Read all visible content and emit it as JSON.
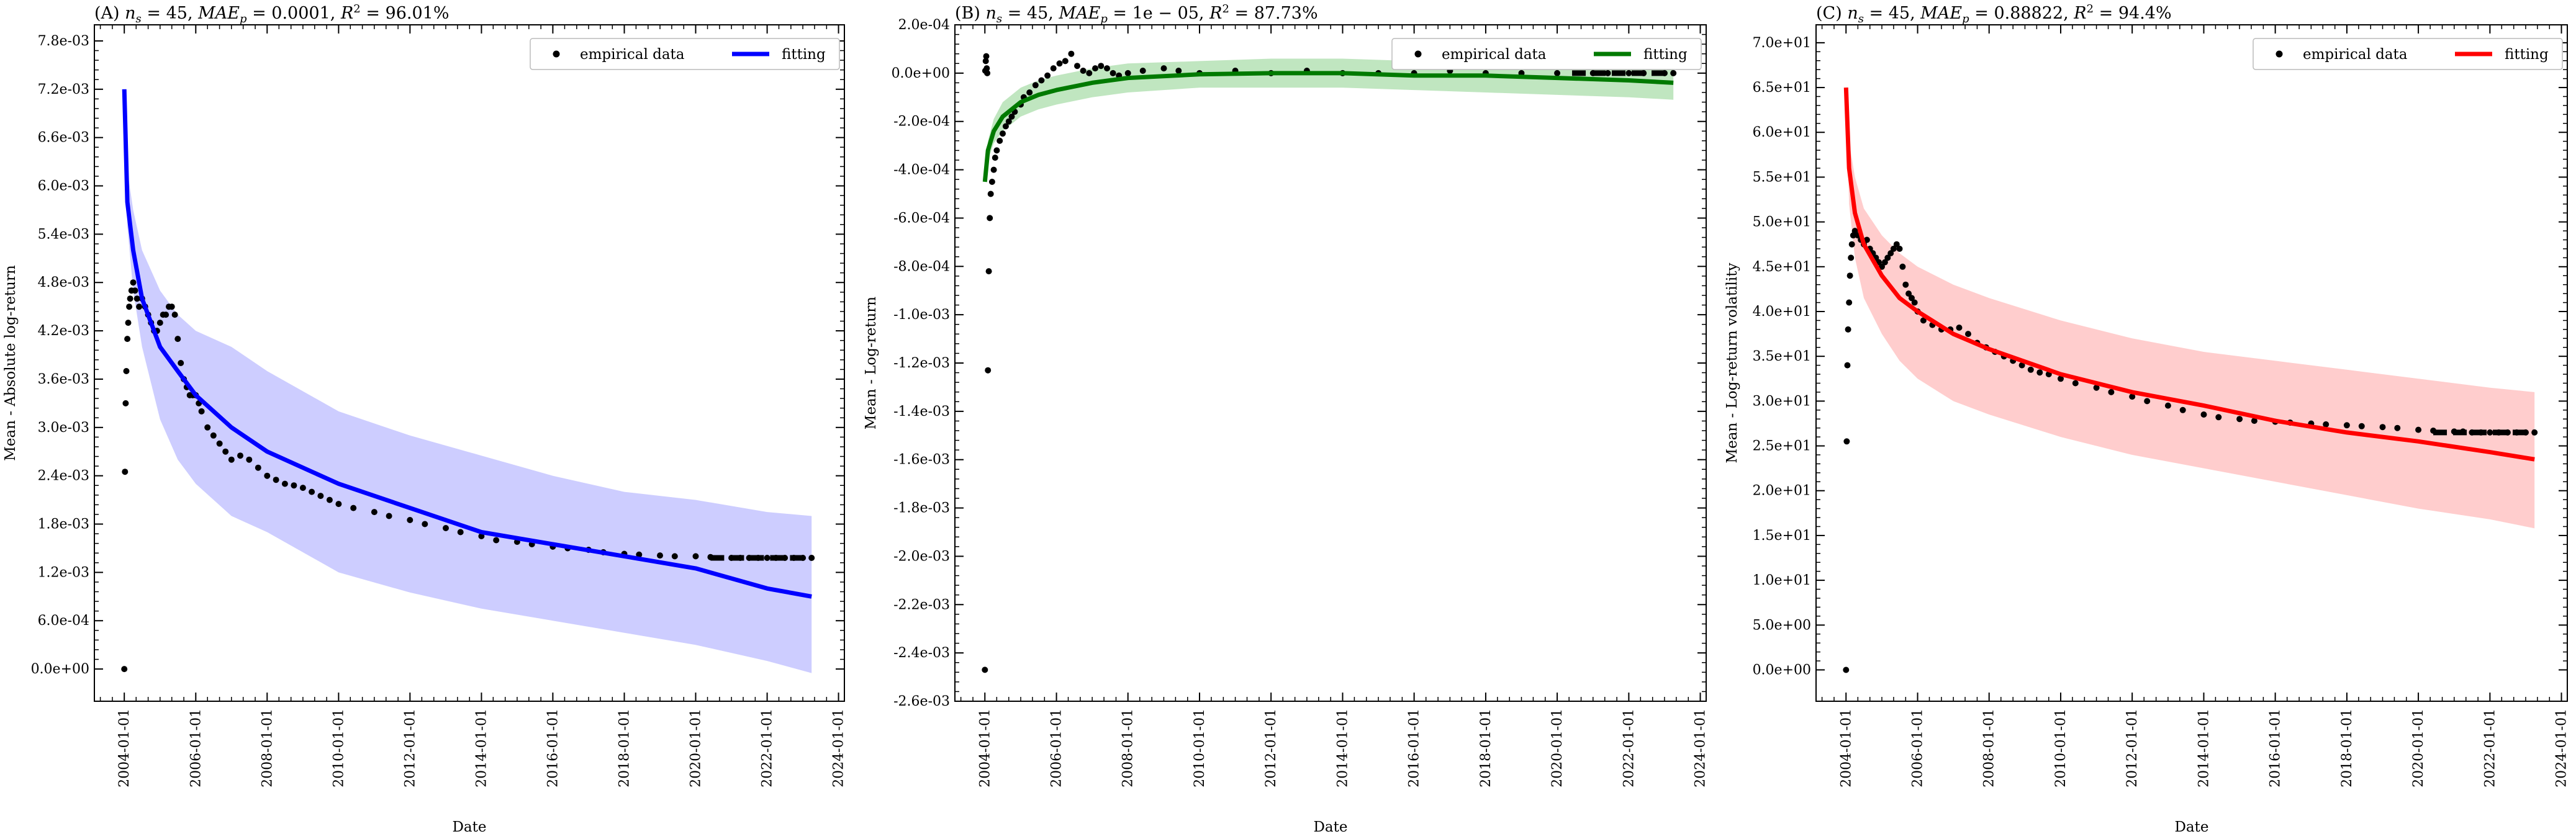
{
  "figure": {
    "xlabel": "Date",
    "legend": {
      "empirical_label": "empirical data",
      "fitting_label": "fitting",
      "placement": "top-right"
    }
  },
  "chart_data": [
    {
      "type": "scatter",
      "panel": "A",
      "title": "(A) n_s = 45, MAE_p = 0.0001, R^2 = 96.01%",
      "title_parts": {
        "prefix": "(A) ",
        "ns": "45",
        "mae": "0.0001",
        "r2": "96.01%"
      },
      "xlabel": "Date",
      "ylabel": "Mean - Absolute log-return",
      "x_ticks": [
        "2004-01-01",
        "2006-01-01",
        "2008-01-01",
        "2010-01-01",
        "2012-01-01",
        "2014-01-01",
        "2016-01-01",
        "2018-01-01",
        "2020-01-01",
        "2022-01-01",
        "2024-01-01"
      ],
      "y_ticks": [
        "0.0e+00",
        "6.0e-04",
        "1.2e-03",
        "1.8e-03",
        "2.4e-03",
        "3.0e-03",
        "3.6e-03",
        "4.2e-03",
        "4.8e-03",
        "5.4e-03",
        "6.0e-03",
        "6.6e-03",
        "7.2e-03",
        "7.8e-03"
      ],
      "ylim": [
        -0.0004,
        0.008
      ],
      "xlim": [
        "2003-03-01",
        "2024-03-01"
      ],
      "grid": false,
      "fit_color": "#0000ff",
      "band_color": "#c8c8ff",
      "empirical": {
        "name": "empirical data",
        "x": [
          "2004-01-01",
          "2004-01-08",
          "2004-01-15",
          "2004-01-22",
          "2004-02-01",
          "2004-02-10",
          "2004-02-20",
          "2004-03-01",
          "2004-03-15",
          "2004-04-01",
          "2004-04-20",
          "2004-05-10",
          "2004-06-01",
          "2004-07-01",
          "2004-08-01",
          "2004-09-01",
          "2004-10-01",
          "2004-11-01",
          "2004-12-01",
          "2005-01-01",
          "2005-02-01",
          "2005-03-01",
          "2005-04-01",
          "2005-05-01",
          "2005-06-01",
          "2005-07-01",
          "2005-08-01",
          "2005-09-01",
          "2005-10-01",
          "2005-11-01",
          "2005-12-01",
          "2006-01-01",
          "2006-02-01",
          "2006-03-01",
          "2006-05-01",
          "2006-07-01",
          "2006-09-01",
          "2006-11-01",
          "2007-01-01",
          "2007-04-01",
          "2007-07-01",
          "2007-10-01",
          "2008-01-01",
          "2008-04-01",
          "2008-07-01",
          "2008-10-01",
          "2009-01-01",
          "2009-04-01",
          "2009-07-01",
          "2009-10-01",
          "2010-01-01",
          "2010-06-01",
          "2011-01-01",
          "2011-06-01",
          "2012-01-01",
          "2012-06-01",
          "2013-01-01",
          "2013-06-01",
          "2014-01-01",
          "2014-06-01",
          "2015-01-01",
          "2015-06-01",
          "2016-01-01",
          "2016-06-01",
          "2017-01-01",
          "2017-06-01",
          "2018-01-01",
          "2018-06-01",
          "2019-01-01",
          "2019-06-01",
          "2020-01-01",
          "2020-06-01",
          "2021-01-01",
          "2021-04-01",
          "2021-07-01",
          "2021-10-01",
          "2022-01-01",
          "2022-04-01",
          "2022-07-01",
          "2022-10-01",
          "2023-01-01",
          "2023-04-01"
        ],
        "y": [
          0.0,
          0.00245,
          0.0033,
          0.0037,
          0.0041,
          0.0043,
          0.0045,
          0.0046,
          0.0047,
          0.0048,
          0.0047,
          0.0046,
          0.0045,
          0.0046,
          0.0045,
          0.0044,
          0.0043,
          0.0042,
          0.0042,
          0.0043,
          0.0044,
          0.0044,
          0.0045,
          0.0045,
          0.0044,
          0.0041,
          0.0038,
          0.0036,
          0.0035,
          0.0034,
          0.0034,
          0.0034,
          0.0033,
          0.0032,
          0.003,
          0.0029,
          0.0028,
          0.0027,
          0.0026,
          0.00265,
          0.0026,
          0.0025,
          0.0024,
          0.00235,
          0.0023,
          0.00228,
          0.00225,
          0.0022,
          0.00215,
          0.0021,
          0.00205,
          0.002,
          0.00195,
          0.0019,
          0.00185,
          0.0018,
          0.00175,
          0.0017,
          0.00165,
          0.0016,
          0.00158,
          0.00155,
          0.00152,
          0.0015,
          0.00148,
          0.00145,
          0.00143,
          0.00142,
          0.00141,
          0.0014,
          0.0014,
          0.00139,
          0.00138,
          0.00138,
          0.00138,
          0.00138,
          0.00138,
          0.00138,
          0.00138,
          0.00138,
          0.00138,
          0.00138
        ]
      },
      "fit": {
        "name": "fitting",
        "x": [
          "2004-01-01",
          "2004-02-01",
          "2004-04-01",
          "2004-07-01",
          "2005-01-01",
          "2005-07-01",
          "2006-01-01",
          "2007-01-01",
          "2008-01-01",
          "2010-01-01",
          "2012-01-01",
          "2014-01-01",
          "2016-01-01",
          "2018-01-01",
          "2020-01-01",
          "2022-01-01",
          "2023-04-01"
        ],
        "y": [
          0.0072,
          0.0058,
          0.0052,
          0.0046,
          0.004,
          0.0037,
          0.0034,
          0.003,
          0.0027,
          0.0023,
          0.002,
          0.0017,
          0.00155,
          0.0014,
          0.00125,
          0.001,
          0.0009
        ],
        "band_lower": [
          0.0072,
          0.0055,
          0.0047,
          0.004,
          0.0031,
          0.0026,
          0.0023,
          0.0019,
          0.0017,
          0.0012,
          0.00095,
          0.00075,
          0.0006,
          0.00045,
          0.0003,
          0.0001,
          -5e-05
        ],
        "band_upper": [
          0.0072,
          0.0062,
          0.0057,
          0.0052,
          0.0047,
          0.0044,
          0.0042,
          0.004,
          0.0037,
          0.0032,
          0.0029,
          0.00265,
          0.0024,
          0.0022,
          0.0021,
          0.00195,
          0.0019
        ]
      }
    },
    {
      "type": "scatter",
      "panel": "B",
      "title": "(B) n_s = 45, MAE_p = 1e-05, R^2 = 87.73%",
      "title_parts": {
        "prefix": "(B) ",
        "ns": "45",
        "mae": "1e − 05",
        "r2": "87.73%"
      },
      "xlabel": "Date",
      "ylabel": "Mean - Log-return",
      "x_ticks": [
        "2004-01-01",
        "2006-01-01",
        "2008-01-01",
        "2010-01-01",
        "2012-01-01",
        "2014-01-01",
        "2016-01-01",
        "2018-01-01",
        "2020-01-01",
        "2022-01-01",
        "2024-01-01"
      ],
      "y_ticks": [
        "-2.6e-03",
        "-2.4e-03",
        "-2.2e-03",
        "-2.0e-03",
        "-1.8e-03",
        "-1.6e-03",
        "-1.4e-03",
        "-1.2e-03",
        "-1.0e-03",
        "-8.0e-04",
        "-6.0e-04",
        "-4.0e-04",
        "-2.0e-04",
        "0.0e+00",
        "2.0e-04"
      ],
      "ylim": [
        -0.0026,
        0.0002
      ],
      "xlim": [
        "2003-03-01",
        "2024-03-01"
      ],
      "grid": false,
      "fit_color": "#007a00",
      "band_color": "#b9e3b9",
      "empirical": {
        "name": "empirical data",
        "x": [
          "2004-01-01",
          "2004-01-05",
          "2004-01-10",
          "2004-01-15",
          "2004-01-20",
          "2004-01-25",
          "2004-02-01",
          "2004-02-10",
          "2004-02-20",
          "2004-03-01",
          "2004-03-15",
          "2004-04-01",
          "2004-04-15",
          "2004-05-01",
          "2004-06-01",
          "2004-07-01",
          "2004-08-01",
          "2004-09-01",
          "2004-10-01",
          "2004-11-01",
          "2005-01-01",
          "2005-02-01",
          "2005-04-01",
          "2005-06-01",
          "2005-08-01",
          "2005-10-01",
          "2005-12-01",
          "2006-02-01",
          "2006-04-01",
          "2006-06-01",
          "2006-08-01",
          "2006-10-01",
          "2006-12-01",
          "2007-02-01",
          "2007-04-01",
          "2007-06-01",
          "2007-08-01",
          "2007-10-01",
          "2008-01-01",
          "2008-06-01",
          "2009-01-01",
          "2009-06-01",
          "2010-01-01",
          "2011-01-01",
          "2012-01-01",
          "2013-01-01",
          "2014-01-01",
          "2015-01-01",
          "2016-01-01",
          "2017-01-01",
          "2018-01-01",
          "2019-01-01",
          "2020-01-01",
          "2021-01-01",
          "2021-06-01",
          "2022-01-01",
          "2022-06-01",
          "2023-01-01",
          "2023-04-01"
        ],
        "y": [
          -0.00247,
          1e-05,
          5e-05,
          7e-05,
          2e-05,
          0.0,
          -0.00123,
          -0.00082,
          -0.0006,
          -0.0005,
          -0.00045,
          -0.0004,
          -0.00035,
          -0.00032,
          -0.00028,
          -0.00025,
          -0.00022,
          -0.0002,
          -0.00018,
          -0.00016,
          -0.00013,
          -0.0001,
          -8e-05,
          -5e-05,
          -3e-05,
          -1e-05,
          2e-05,
          4e-05,
          5e-05,
          8e-05,
          3e-05,
          1e-05,
          0.0,
          2e-05,
          3e-05,
          2e-05,
          0.0,
          -1e-05,
          0.0,
          1e-05,
          2e-05,
          1e-05,
          0.0,
          1e-05,
          0.0,
          1e-05,
          0.0,
          0.0,
          0.0,
          1e-05,
          0.0,
          0.0,
          0.0,
          0.0,
          0.0,
          0.0,
          0.0,
          0.0,
          0.0
        ]
      },
      "fit": {
        "name": "fitting",
        "x": [
          "2004-01-01",
          "2004-02-01",
          "2004-04-01",
          "2004-07-01",
          "2005-01-01",
          "2005-07-01",
          "2006-01-01",
          "2007-01-01",
          "2008-01-01",
          "2010-01-01",
          "2012-01-01",
          "2014-01-01",
          "2016-01-01",
          "2018-01-01",
          "2020-01-01",
          "2022-01-01",
          "2023-04-01"
        ],
        "y": [
          -0.00045,
          -0.00032,
          -0.00024,
          -0.00018,
          -0.00012,
          -9e-05,
          -7e-05,
          -4e-05,
          -2e-05,
          -5e-06,
          0.0,
          0.0,
          -1e-05,
          -1e-05,
          -2e-05,
          -3e-05,
          -4e-05
        ],
        "band_lower": [
          -0.00045,
          -0.00036,
          -0.00029,
          -0.00024,
          -0.00018,
          -0.00015,
          -0.00013,
          -0.0001,
          -8e-05,
          -6e-05,
          -6e-05,
          -6e-05,
          -7e-05,
          -8e-05,
          -9e-05,
          -0.0001,
          -0.00011
        ],
        "band_upper": [
          -0.00045,
          -0.00028,
          -0.00019,
          -0.00012,
          -6e-05,
          -3e-05,
          -1e-05,
          2e-05,
          4e-05,
          5e-05,
          6e-05,
          6e-05,
          5e-05,
          5e-05,
          4e-05,
          3e-05,
          2e-05
        ]
      }
    },
    {
      "type": "scatter",
      "panel": "C",
      "title": "(C) n_s = 45, MAE_p = 0.88822, R^2 = 94.4%",
      "title_parts": {
        "prefix": "(C) ",
        "ns": "45",
        "mae": "0.88822",
        "r2": "94.4%"
      },
      "xlabel": "Date",
      "ylabel": "Mean - Log-return volatility",
      "x_ticks": [
        "2004-01-01",
        "2006-01-01",
        "2008-01-01",
        "2010-01-01",
        "2012-01-01",
        "2014-01-01",
        "2016-01-01",
        "2018-01-01",
        "2020-01-01",
        "2022-01-01",
        "2024-01-01"
      ],
      "y_ticks": [
        "0.0e+00",
        "5.0e+00",
        "1.0e+01",
        "1.5e+01",
        "2.0e+01",
        "2.5e+01",
        "3.0e+01",
        "3.5e+01",
        "4.0e+01",
        "4.5e+01",
        "5.0e+01",
        "5.5e+01",
        "6.0e+01",
        "6.5e+01",
        "7.0e+01"
      ],
      "ylim": [
        -3.5,
        72
      ],
      "xlim": [
        "2003-03-01",
        "2024-03-01"
      ],
      "grid": false,
      "fit_color": "#ff0000",
      "band_color": "#ffc8c8",
      "empirical": {
        "name": "empirical data",
        "x": [
          "2004-01-01",
          "2004-01-08",
          "2004-01-15",
          "2004-01-22",
          "2004-02-01",
          "2004-02-10",
          "2004-02-20",
          "2004-03-01",
          "2004-03-15",
          "2004-04-01",
          "2004-05-01",
          "2004-06-01",
          "2004-07-01",
          "2004-08-01",
          "2004-09-01",
          "2004-10-01",
          "2004-11-01",
          "2004-12-01",
          "2005-01-01",
          "2005-02-01",
          "2005-03-01",
          "2005-04-01",
          "2005-05-01",
          "2005-06-01",
          "2005-07-01",
          "2005-08-01",
          "2005-09-01",
          "2005-10-01",
          "2005-11-01",
          "2005-12-01",
          "2006-01-01",
          "2006-03-01",
          "2006-06-01",
          "2006-09-01",
          "2006-12-01",
          "2007-03-01",
          "2007-06-01",
          "2007-09-01",
          "2007-12-01",
          "2008-03-01",
          "2008-06-01",
          "2008-09-01",
          "2008-12-01",
          "2009-03-01",
          "2009-06-01",
          "2009-09-01",
          "2010-01-01",
          "2010-06-01",
          "2011-01-01",
          "2011-06-01",
          "2012-01-01",
          "2012-06-01",
          "2013-01-01",
          "2013-06-01",
          "2014-01-01",
          "2014-06-01",
          "2015-01-01",
          "2015-06-01",
          "2016-01-01",
          "2016-06-01",
          "2017-01-01",
          "2017-06-01",
          "2018-01-01",
          "2018-06-01",
          "2019-01-01",
          "2019-06-01",
          "2020-01-01",
          "2020-06-01",
          "2021-01-01",
          "2021-04-01",
          "2021-07-01",
          "2021-10-01",
          "2022-01-01",
          "2022-04-01",
          "2022-07-01",
          "2022-10-01",
          "2023-01-01",
          "2023-04-01"
        ],
        "y": [
          0.0,
          25.5,
          34.0,
          38.0,
          41.0,
          44.0,
          46.0,
          47.5,
          48.5,
          49.0,
          48.5,
          48.0,
          47.5,
          48.0,
          47.0,
          46.5,
          46.0,
          45.5,
          45.0,
          45.5,
          46.0,
          46.5,
          47.0,
          47.5,
          47.0,
          45.0,
          43.0,
          42.0,
          41.5,
          41.0,
          40.0,
          39.0,
          38.5,
          38.0,
          38.0,
          38.2,
          37.5,
          36.5,
          36.0,
          35.5,
          35.0,
          34.5,
          34.0,
          33.5,
          33.2,
          33.0,
          32.5,
          32.0,
          31.5,
          31.0,
          30.5,
          30.0,
          29.5,
          29.0,
          28.5,
          28.2,
          28.0,
          27.8,
          27.7,
          27.6,
          27.5,
          27.4,
          27.3,
          27.2,
          27.1,
          27.0,
          26.8,
          26.7,
          26.6,
          26.6,
          26.5,
          26.5,
          26.5,
          26.5,
          26.5,
          26.5,
          26.5,
          26.5
        ]
      },
      "fit": {
        "name": "fitting",
        "x": [
          "2004-01-01",
          "2004-02-01",
          "2004-04-01",
          "2004-07-01",
          "2005-01-01",
          "2005-07-01",
          "2006-01-01",
          "2007-01-01",
          "2008-01-01",
          "2010-01-01",
          "2012-01-01",
          "2014-01-01",
          "2016-01-01",
          "2018-01-01",
          "2020-01-01",
          "2022-01-01",
          "2023-04-01"
        ],
        "y": [
          65.0,
          56.0,
          51.0,
          47.5,
          44.0,
          41.5,
          40.0,
          37.5,
          35.8,
          33.0,
          31.0,
          29.5,
          27.8,
          26.5,
          25.5,
          24.3,
          23.5
        ],
        "band_lower": [
          65.0,
          52.0,
          46.0,
          41.5,
          37.5,
          34.5,
          32.5,
          30.0,
          28.5,
          26.0,
          24.0,
          22.5,
          21.0,
          19.5,
          18.0,
          16.8,
          15.8
        ],
        "band_upper": [
          65.0,
          59.0,
          55.0,
          51.5,
          48.5,
          46.5,
          45.0,
          43.0,
          41.5,
          39.0,
          37.0,
          35.5,
          34.5,
          33.5,
          32.5,
          31.5,
          31.0
        ]
      }
    }
  ]
}
